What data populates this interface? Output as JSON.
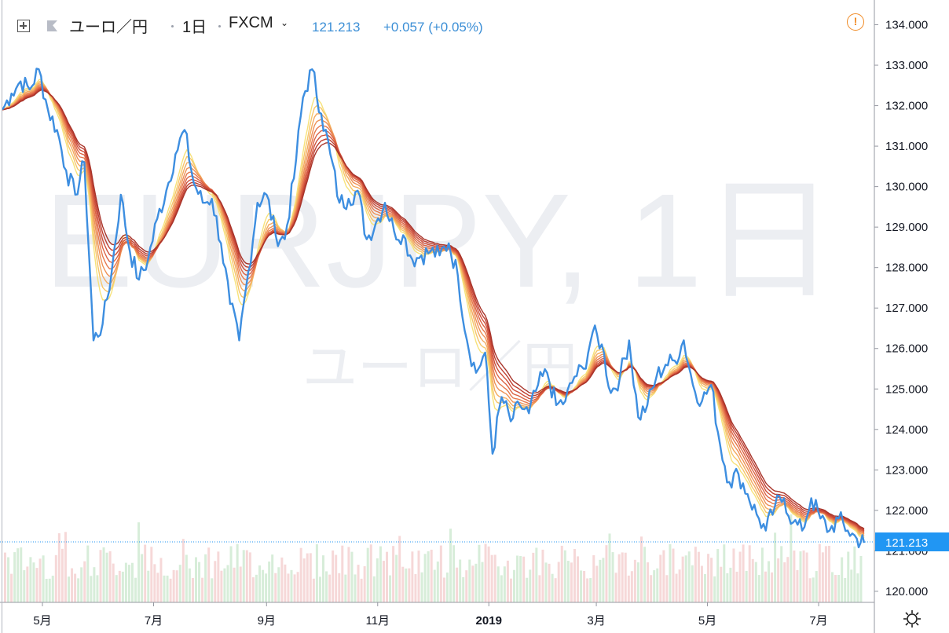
{
  "header": {
    "symbol_name": "ユーロ／円",
    "interval": "1日",
    "exchange": "FXCM",
    "last_price": "121.213",
    "change": "+0.057 (+0.05%)"
  },
  "watermark": {
    "line1": "EURJPY, 1日",
    "line2": "ユーロ／円"
  },
  "price_label": "121.213",
  "colors": {
    "price_line": "#3d8ee0",
    "ribbon": [
      "#f7e27a",
      "#f6c66a",
      "#f3aa60",
      "#ee9156",
      "#e6794d",
      "#dc6344",
      "#cf4f3a",
      "#bf3f31",
      "#a8342a"
    ],
    "volume_up": "#c9e7cc",
    "volume_down": "#f3cbcb",
    "price_label_bg": "#2196f3"
  },
  "icons": [
    "add-symbol-icon",
    "flag-icon",
    "chevron-down-icon",
    "warning-icon",
    "settings-gear-icon"
  ],
  "chart_data": {
    "type": "line",
    "title": "ユーロ／円 · 1日 · FXCM",
    "y_axis_ticks": [
      "120.000",
      "121.000",
      "122.000",
      "123.000",
      "124.000",
      "125.000",
      "126.000",
      "127.000",
      "128.000",
      "129.000",
      "130.000",
      "131.000",
      "132.000",
      "133.000",
      "134.000"
    ],
    "ylim": [
      119.7,
      134.3
    ],
    "x_axis_ticks": [
      "5月",
      "7月",
      "9月",
      "11月",
      "2019",
      "3月",
      "5月",
      "7月"
    ],
    "x_range": [
      "2018-04-09",
      "2019-07-26"
    ],
    "series": [
      {
        "name": "EURJPY",
        "points": [
          [
            "2018-04-09",
            131.9
          ],
          [
            "2018-04-14",
            132.3
          ],
          [
            "2018-04-19",
            132.6
          ],
          [
            "2018-04-24",
            132.4
          ],
          [
            "2018-04-29",
            132.9
          ],
          [
            "2018-05-04",
            131.9
          ],
          [
            "2018-05-09",
            131.4
          ],
          [
            "2018-05-14",
            130.4
          ],
          [
            "2018-05-19",
            129.8
          ],
          [
            "2018-05-24",
            130.6
          ],
          [
            "2018-05-29",
            126.2
          ],
          [
            "2018-06-03",
            126.6
          ],
          [
            "2018-06-08",
            127.9
          ],
          [
            "2018-06-13",
            129.8
          ],
          [
            "2018-06-18",
            128.4
          ],
          [
            "2018-06-23",
            127.7
          ],
          [
            "2018-06-28",
            128.2
          ],
          [
            "2018-07-03",
            129.2
          ],
          [
            "2018-07-08",
            129.9
          ],
          [
            "2018-07-13",
            130.8
          ],
          [
            "2018-07-18",
            131.4
          ],
          [
            "2018-07-23",
            130.1
          ],
          [
            "2018-07-28",
            129.6
          ],
          [
            "2018-08-02",
            129.7
          ],
          [
            "2018-08-07",
            128.6
          ],
          [
            "2018-08-12",
            127.1
          ],
          [
            "2018-08-17",
            126.2
          ],
          [
            "2018-08-22",
            127.9
          ],
          [
            "2018-08-27",
            129.6
          ],
          [
            "2018-09-01",
            129.8
          ],
          [
            "2018-09-06",
            128.8
          ],
          [
            "2018-09-11",
            128.7
          ],
          [
            "2018-09-16",
            130.2
          ],
          [
            "2018-09-21",
            132.2
          ],
          [
            "2018-09-26",
            132.9
          ],
          [
            "2018-10-01",
            131.8
          ],
          [
            "2018-10-06",
            130.8
          ],
          [
            "2018-10-11",
            129.6
          ],
          [
            "2018-10-16",
            129.7
          ],
          [
            "2018-10-21",
            129.9
          ],
          [
            "2018-10-26",
            128.7
          ],
          [
            "2018-10-31",
            129.1
          ],
          [
            "2018-11-05",
            129.6
          ],
          [
            "2018-11-10",
            128.9
          ],
          [
            "2018-11-15",
            128.8
          ],
          [
            "2018-11-20",
            128.2
          ],
          [
            "2018-11-25",
            128.3
          ],
          [
            "2018-11-30",
            128.4
          ],
          [
            "2018-12-05",
            128.3
          ],
          [
            "2018-12-10",
            128.6
          ],
          [
            "2018-12-15",
            127.8
          ],
          [
            "2018-12-20",
            126.2
          ],
          [
            "2018-12-25",
            125.4
          ],
          [
            "2018-12-30",
            125.9
          ],
          [
            "2019-01-03",
            123.4
          ],
          [
            "2019-01-08",
            124.8
          ],
          [
            "2019-01-13",
            124.2
          ],
          [
            "2019-01-18",
            124.6
          ],
          [
            "2019-01-23",
            124.4
          ],
          [
            "2019-01-28",
            125.1
          ],
          [
            "2019-02-02",
            125.4
          ],
          [
            "2019-02-07",
            124.6
          ],
          [
            "2019-02-12",
            124.7
          ],
          [
            "2019-02-17",
            125.3
          ],
          [
            "2019-02-22",
            125.5
          ],
          [
            "2019-02-27",
            126.4
          ],
          [
            "2019-03-04",
            126.1
          ],
          [
            "2019-03-09",
            124.9
          ],
          [
            "2019-03-14",
            125.3
          ],
          [
            "2019-03-19",
            126.2
          ],
          [
            "2019-03-24",
            124.3
          ],
          [
            "2019-03-29",
            124.6
          ],
          [
            "2019-04-03",
            125.3
          ],
          [
            "2019-04-08",
            125.6
          ],
          [
            "2019-04-13",
            125.7
          ],
          [
            "2019-04-18",
            126.2
          ],
          [
            "2019-04-23",
            125.1
          ],
          [
            "2019-04-28",
            124.7
          ],
          [
            "2019-05-03",
            125.1
          ],
          [
            "2019-05-08",
            123.6
          ],
          [
            "2019-05-13",
            122.7
          ],
          [
            "2019-05-18",
            122.9
          ],
          [
            "2019-05-23",
            122.4
          ],
          [
            "2019-05-28",
            121.9
          ],
          [
            "2019-06-02",
            121.5
          ],
          [
            "2019-06-07",
            122.1
          ],
          [
            "2019-06-12",
            122.3
          ],
          [
            "2019-06-17",
            121.7
          ],
          [
            "2019-06-22",
            121.5
          ],
          [
            "2019-06-27",
            122.3
          ],
          [
            "2019-07-02",
            121.8
          ],
          [
            "2019-07-07",
            121.5
          ],
          [
            "2019-07-12",
            121.8
          ],
          [
            "2019-07-17",
            121.5
          ],
          [
            "2019-07-22",
            121.3
          ],
          [
            "2019-07-26",
            121.2
          ]
        ]
      }
    ]
  }
}
